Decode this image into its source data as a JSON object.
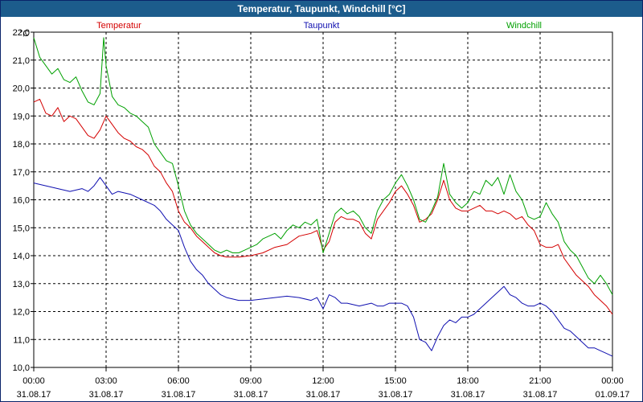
{
  "window": {
    "title": "Temperatur, Taupunkt, Windchill [°C]"
  },
  "chart_data": {
    "type": "line",
    "title": "Temperatur, Taupunkt, Windchill [°C]",
    "ylabel": "°C",
    "ylim": [
      10.0,
      22.0
    ],
    "xlim": [
      0,
      24
    ],
    "y_ticks": [
      "10,0",
      "11,0",
      "12,0",
      "13,0",
      "14,0",
      "15,0",
      "16,0",
      "17,0",
      "18,0",
      "19,0",
      "20,0",
      "21,0",
      "22,0"
    ],
    "x_ticks": [
      {
        "time": "00:00",
        "date": "31.08.17"
      },
      {
        "time": "03:00",
        "date": "31.08.17"
      },
      {
        "time": "06:00",
        "date": "31.08.17"
      },
      {
        "time": "09:00",
        "date": "31.08.17"
      },
      {
        "time": "12:00",
        "date": "31.08.17"
      },
      {
        "time": "15:00",
        "date": "31.08.17"
      },
      {
        "time": "18:00",
        "date": "31.08.17"
      },
      {
        "time": "21:00",
        "date": "31.08.17"
      },
      {
        "time": "00:00",
        "date": "01.09.17"
      }
    ],
    "grid": true,
    "legend": "top",
    "series": [
      {
        "name": "Temperatur",
        "color": "#d40000",
        "points": [
          [
            0,
            19.5
          ],
          [
            0.25,
            19.6
          ],
          [
            0.5,
            19.1
          ],
          [
            0.75,
            19.0
          ],
          [
            1.0,
            19.3
          ],
          [
            1.25,
            18.8
          ],
          [
            1.5,
            19.0
          ],
          [
            1.75,
            18.9
          ],
          [
            2.0,
            18.6
          ],
          [
            2.25,
            18.3
          ],
          [
            2.5,
            18.2
          ],
          [
            2.75,
            18.5
          ],
          [
            3.0,
            19.0
          ],
          [
            3.25,
            18.7
          ],
          [
            3.5,
            18.4
          ],
          [
            3.75,
            18.2
          ],
          [
            4.0,
            18.1
          ],
          [
            4.25,
            17.9
          ],
          [
            4.5,
            17.8
          ],
          [
            4.75,
            17.6
          ],
          [
            5.0,
            17.2
          ],
          [
            5.25,
            17.0
          ],
          [
            5.5,
            16.6
          ],
          [
            5.75,
            16.3
          ],
          [
            6.0,
            15.6
          ],
          [
            6.25,
            15.2
          ],
          [
            6.5,
            15.0
          ],
          [
            6.75,
            14.7
          ],
          [
            7.0,
            14.5
          ],
          [
            7.25,
            14.3
          ],
          [
            7.5,
            14.1
          ],
          [
            7.75,
            14.0
          ],
          [
            8.0,
            13.95
          ],
          [
            8.5,
            13.95
          ],
          [
            9.0,
            14.0
          ],
          [
            9.5,
            14.1
          ],
          [
            10.0,
            14.3
          ],
          [
            10.5,
            14.4
          ],
          [
            11.0,
            14.7
          ],
          [
            11.5,
            14.8
          ],
          [
            11.75,
            14.9
          ],
          [
            12.0,
            14.2
          ],
          [
            12.25,
            14.5
          ],
          [
            12.5,
            15.2
          ],
          [
            12.75,
            15.4
          ],
          [
            13.0,
            15.3
          ],
          [
            13.25,
            15.3
          ],
          [
            13.5,
            15.2
          ],
          [
            13.75,
            14.8
          ],
          [
            14.0,
            14.6
          ],
          [
            14.25,
            15.3
          ],
          [
            14.5,
            15.6
          ],
          [
            14.75,
            15.9
          ],
          [
            15.0,
            16.3
          ],
          [
            15.25,
            16.5
          ],
          [
            15.5,
            16.2
          ],
          [
            15.75,
            15.8
          ],
          [
            16.0,
            15.2
          ],
          [
            16.25,
            15.3
          ],
          [
            16.5,
            15.5
          ],
          [
            16.75,
            16.0
          ],
          [
            17.0,
            16.7
          ],
          [
            17.25,
            16.0
          ],
          [
            17.5,
            15.7
          ],
          [
            17.75,
            15.6
          ],
          [
            18.0,
            15.6
          ],
          [
            18.25,
            15.7
          ],
          [
            18.5,
            15.8
          ],
          [
            18.75,
            15.6
          ],
          [
            19.0,
            15.6
          ],
          [
            19.25,
            15.5
          ],
          [
            19.5,
            15.6
          ],
          [
            19.75,
            15.5
          ],
          [
            20.0,
            15.3
          ],
          [
            20.25,
            15.4
          ],
          [
            20.5,
            15.1
          ],
          [
            20.75,
            14.9
          ],
          [
            21.0,
            14.4
          ],
          [
            21.25,
            14.3
          ],
          [
            21.5,
            14.3
          ],
          [
            21.75,
            14.4
          ],
          [
            22.0,
            13.9
          ],
          [
            22.25,
            13.6
          ],
          [
            22.5,
            13.3
          ],
          [
            22.75,
            13.1
          ],
          [
            23.0,
            12.9
          ],
          [
            23.25,
            12.6
          ],
          [
            23.5,
            12.4
          ],
          [
            23.75,
            12.2
          ],
          [
            24.0,
            11.9
          ]
        ]
      },
      {
        "name": "Taupunkt",
        "color": "#1010b0",
        "points": [
          [
            0,
            16.6
          ],
          [
            0.5,
            16.5
          ],
          [
            1.0,
            16.4
          ],
          [
            1.5,
            16.3
          ],
          [
            2.0,
            16.4
          ],
          [
            2.25,
            16.3
          ],
          [
            2.5,
            16.5
          ],
          [
            2.75,
            16.8
          ],
          [
            3.0,
            16.5
          ],
          [
            3.25,
            16.2
          ],
          [
            3.5,
            16.3
          ],
          [
            4.0,
            16.2
          ],
          [
            4.5,
            16.0
          ],
          [
            5.0,
            15.8
          ],
          [
            5.25,
            15.6
          ],
          [
            5.5,
            15.3
          ],
          [
            5.75,
            15.1
          ],
          [
            6.0,
            14.9
          ],
          [
            6.25,
            14.3
          ],
          [
            6.5,
            13.8
          ],
          [
            6.75,
            13.5
          ],
          [
            7.0,
            13.3
          ],
          [
            7.25,
            13.0
          ],
          [
            7.5,
            12.8
          ],
          [
            7.75,
            12.6
          ],
          [
            8.0,
            12.5
          ],
          [
            8.5,
            12.4
          ],
          [
            9.0,
            12.4
          ],
          [
            9.5,
            12.45
          ],
          [
            10.0,
            12.5
          ],
          [
            10.5,
            12.55
          ],
          [
            11.0,
            12.5
          ],
          [
            11.5,
            12.4
          ],
          [
            11.75,
            12.5
          ],
          [
            12.0,
            12.1
          ],
          [
            12.25,
            12.6
          ],
          [
            12.5,
            12.5
          ],
          [
            12.75,
            12.3
          ],
          [
            13.0,
            12.3
          ],
          [
            13.5,
            12.2
          ],
          [
            14.0,
            12.3
          ],
          [
            14.25,
            12.2
          ],
          [
            14.5,
            12.2
          ],
          [
            14.75,
            12.3
          ],
          [
            15.0,
            12.3
          ],
          [
            15.25,
            12.3
          ],
          [
            15.5,
            12.2
          ],
          [
            15.75,
            11.8
          ],
          [
            16.0,
            11.0
          ],
          [
            16.25,
            10.9
          ],
          [
            16.5,
            10.6
          ],
          [
            16.75,
            11.1
          ],
          [
            17.0,
            11.5
          ],
          [
            17.25,
            11.7
          ],
          [
            17.5,
            11.6
          ],
          [
            17.75,
            11.8
          ],
          [
            18.0,
            11.8
          ],
          [
            18.25,
            11.9
          ],
          [
            18.5,
            12.1
          ],
          [
            18.75,
            12.3
          ],
          [
            19.0,
            12.5
          ],
          [
            19.25,
            12.7
          ],
          [
            19.5,
            12.9
          ],
          [
            19.75,
            12.6
          ],
          [
            20.0,
            12.5
          ],
          [
            20.25,
            12.3
          ],
          [
            20.5,
            12.2
          ],
          [
            20.75,
            12.2
          ],
          [
            21.0,
            12.3
          ],
          [
            21.25,
            12.2
          ],
          [
            21.5,
            12.0
          ],
          [
            21.75,
            11.7
          ],
          [
            22.0,
            11.4
          ],
          [
            22.25,
            11.3
          ],
          [
            22.5,
            11.1
          ],
          [
            22.75,
            10.9
          ],
          [
            23.0,
            10.7
          ],
          [
            23.25,
            10.7
          ],
          [
            23.5,
            10.6
          ],
          [
            23.75,
            10.5
          ],
          [
            24.0,
            10.4
          ]
        ]
      },
      {
        "name": "Windchill",
        "color": "#00a000",
        "points": [
          [
            0,
            21.8
          ],
          [
            0.25,
            21.1
          ],
          [
            0.5,
            20.8
          ],
          [
            0.75,
            20.5
          ],
          [
            1.0,
            20.7
          ],
          [
            1.25,
            20.3
          ],
          [
            1.5,
            20.2
          ],
          [
            1.75,
            20.4
          ],
          [
            2.0,
            19.9
          ],
          [
            2.25,
            19.5
          ],
          [
            2.5,
            19.4
          ],
          [
            2.75,
            19.8
          ],
          [
            2.9,
            21.8
          ],
          [
            3.0,
            20.8
          ],
          [
            3.25,
            19.7
          ],
          [
            3.5,
            19.4
          ],
          [
            3.75,
            19.3
          ],
          [
            4.0,
            19.1
          ],
          [
            4.25,
            19.0
          ],
          [
            4.5,
            18.8
          ],
          [
            4.75,
            18.6
          ],
          [
            5.0,
            18.0
          ],
          [
            5.25,
            17.7
          ],
          [
            5.5,
            17.4
          ],
          [
            5.75,
            17.3
          ],
          [
            6.0,
            16.5
          ],
          [
            6.25,
            15.6
          ],
          [
            6.5,
            15.1
          ],
          [
            6.75,
            14.8
          ],
          [
            7.0,
            14.6
          ],
          [
            7.25,
            14.4
          ],
          [
            7.5,
            14.2
          ],
          [
            7.75,
            14.1
          ],
          [
            8.0,
            14.2
          ],
          [
            8.25,
            14.1
          ],
          [
            8.5,
            14.1
          ],
          [
            8.75,
            14.2
          ],
          [
            9.0,
            14.3
          ],
          [
            9.25,
            14.4
          ],
          [
            9.5,
            14.6
          ],
          [
            9.75,
            14.7
          ],
          [
            10.0,
            14.8
          ],
          [
            10.25,
            14.6
          ],
          [
            10.5,
            14.9
          ],
          [
            10.75,
            15.1
          ],
          [
            11.0,
            15.0
          ],
          [
            11.25,
            15.2
          ],
          [
            11.5,
            15.1
          ],
          [
            11.75,
            15.3
          ],
          [
            12.0,
            14.1
          ],
          [
            12.25,
            14.8
          ],
          [
            12.5,
            15.5
          ],
          [
            12.75,
            15.7
          ],
          [
            13.0,
            15.5
          ],
          [
            13.25,
            15.6
          ],
          [
            13.5,
            15.4
          ],
          [
            13.75,
            15.0
          ],
          [
            14.0,
            14.8
          ],
          [
            14.25,
            15.6
          ],
          [
            14.5,
            16.0
          ],
          [
            14.75,
            16.2
          ],
          [
            15.0,
            16.6
          ],
          [
            15.25,
            16.9
          ],
          [
            15.5,
            16.5
          ],
          [
            15.75,
            16.0
          ],
          [
            16.0,
            15.3
          ],
          [
            16.25,
            15.2
          ],
          [
            16.5,
            15.6
          ],
          [
            16.75,
            16.1
          ],
          [
            17.0,
            17.3
          ],
          [
            17.25,
            16.2
          ],
          [
            17.5,
            15.9
          ],
          [
            17.75,
            15.7
          ],
          [
            18.0,
            15.9
          ],
          [
            18.25,
            16.3
          ],
          [
            18.5,
            16.2
          ],
          [
            18.75,
            16.7
          ],
          [
            19.0,
            16.5
          ],
          [
            19.25,
            16.8
          ],
          [
            19.5,
            16.2
          ],
          [
            19.75,
            16.9
          ],
          [
            20.0,
            16.3
          ],
          [
            20.25,
            16.0
          ],
          [
            20.5,
            15.4
          ],
          [
            20.75,
            15.3
          ],
          [
            21.0,
            15.4
          ],
          [
            21.25,
            15.9
          ],
          [
            21.5,
            15.5
          ],
          [
            21.75,
            15.2
          ],
          [
            22.0,
            14.5
          ],
          [
            22.25,
            14.2
          ],
          [
            22.5,
            14.0
          ],
          [
            22.75,
            13.6
          ],
          [
            23.0,
            13.2
          ],
          [
            23.25,
            13.0
          ],
          [
            23.5,
            13.3
          ],
          [
            23.75,
            13.0
          ],
          [
            24.0,
            12.6
          ]
        ]
      }
    ]
  }
}
